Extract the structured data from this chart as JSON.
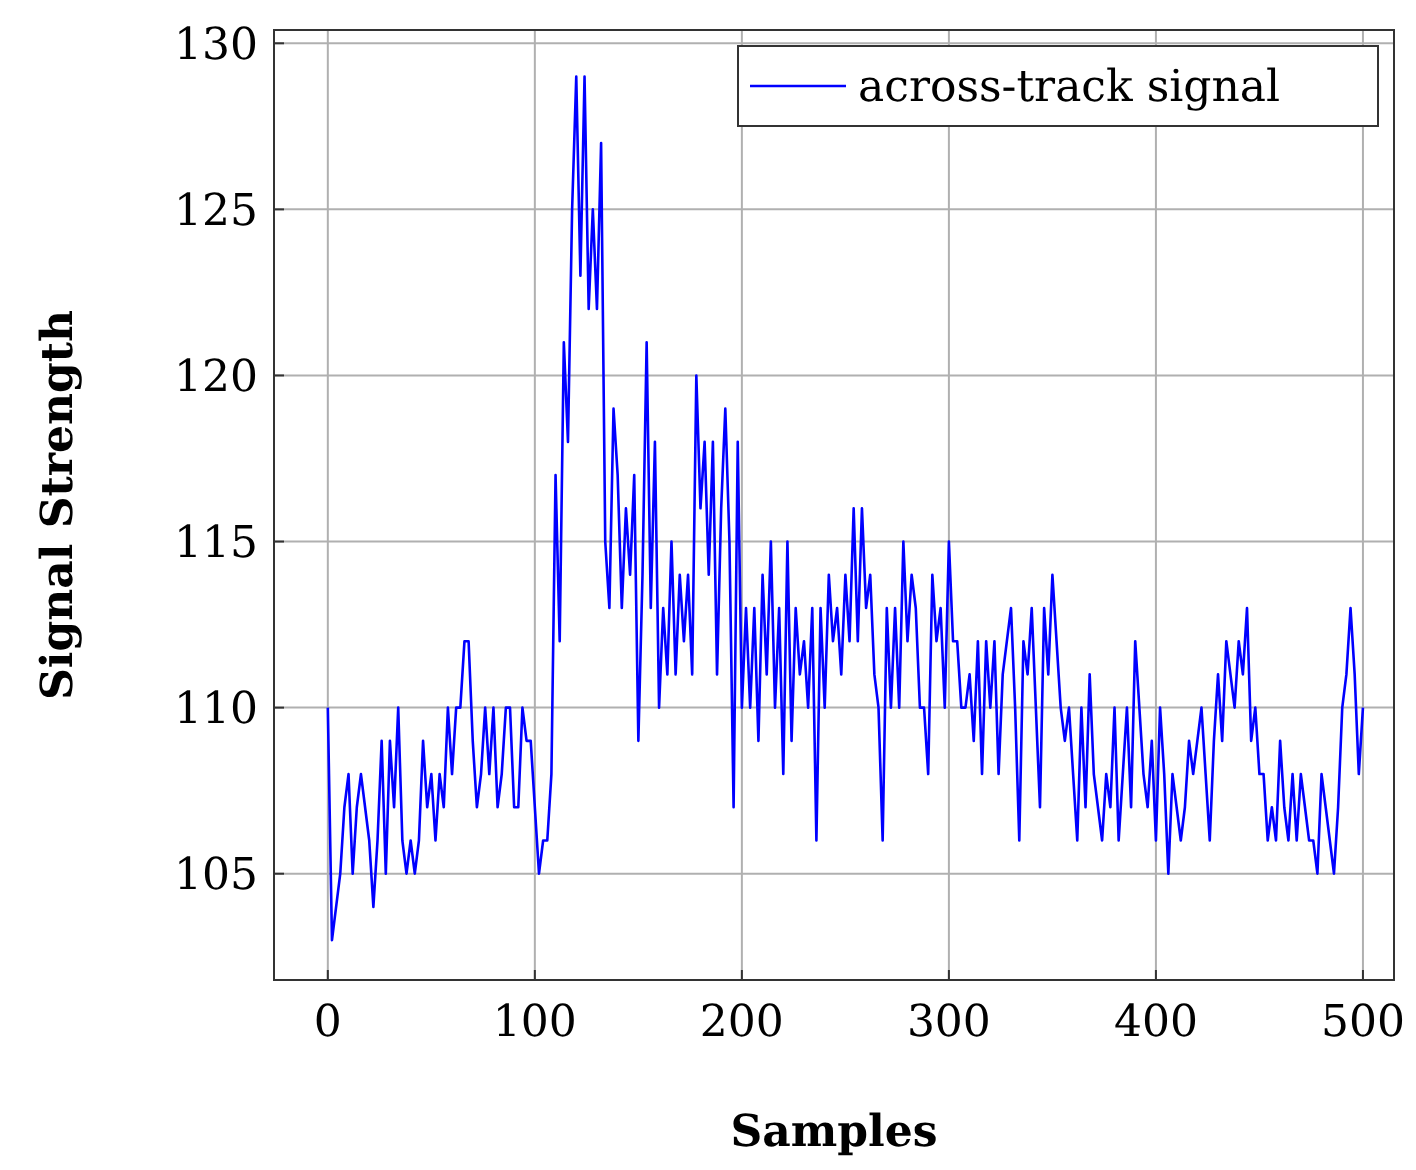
{
  "chart_data": {
    "type": "line",
    "xlabel": "Samples",
    "ylabel": "Signal Strength",
    "xlim": [
      -26,
      515
    ],
    "ylim": [
      101.8,
      130.4
    ],
    "xticks": [
      0,
      100,
      200,
      300,
      400,
      500
    ],
    "yticks": [
      105,
      110,
      115,
      120,
      125,
      130
    ],
    "grid": true,
    "legend": "top right",
    "line_style": "solid",
    "x": [
      0,
      2,
      4,
      6,
      8,
      10,
      12,
      14,
      16,
      18,
      20,
      22,
      24,
      26,
      28,
      30,
      32,
      34,
      36,
      38,
      40,
      42,
      44,
      46,
      48,
      50,
      52,
      54,
      56,
      58,
      60,
      62,
      64,
      66,
      68,
      70,
      72,
      74,
      76,
      78,
      80,
      82,
      84,
      86,
      88,
      90,
      92,
      94,
      96,
      98,
      100,
      102,
      104,
      106,
      108,
      110,
      112,
      114,
      116,
      118,
      120,
      122,
      124,
      126,
      128,
      130,
      132,
      134,
      136,
      138,
      140,
      142,
      144,
      146,
      148,
      150,
      152,
      154,
      156,
      158,
      160,
      162,
      164,
      166,
      168,
      170,
      172,
      174,
      176,
      178,
      180,
      182,
      184,
      186,
      188,
      190,
      192,
      194,
      196,
      198,
      200,
      202,
      204,
      206,
      208,
      210,
      212,
      214,
      216,
      218,
      220,
      222,
      224,
      226,
      228,
      230,
      232,
      234,
      236,
      238,
      240,
      242,
      244,
      246,
      248,
      250,
      252,
      254,
      256,
      258,
      260,
      262,
      264,
      266,
      268,
      270,
      272,
      274,
      276,
      278,
      280,
      282,
      284,
      286,
      288,
      290,
      292,
      294,
      296,
      298,
      300,
      302,
      304,
      306,
      308,
      310,
      312,
      314,
      316,
      318,
      320,
      322,
      324,
      326,
      328,
      330,
      332,
      334,
      336,
      338,
      340,
      342,
      344,
      346,
      348,
      350,
      352,
      354,
      356,
      358,
      360,
      362,
      364,
      366,
      368,
      370,
      372,
      374,
      376,
      378,
      380,
      382,
      384,
      386,
      388,
      390,
      392,
      394,
      396,
      398,
      400,
      402,
      404,
      406,
      408,
      410,
      412,
      414,
      416,
      418,
      420,
      422,
      424,
      426,
      428,
      430,
      432,
      434,
      436,
      438,
      440,
      442,
      444,
      446,
      448,
      450,
      452,
      454,
      456,
      458,
      460,
      462,
      464,
      466,
      468,
      470,
      472,
      474,
      476,
      478,
      480,
      482,
      484,
      486,
      488,
      490,
      492,
      494,
      496,
      498,
      500
    ],
    "series": [
      {
        "name": "across-track signal",
        "color": "#0000ff",
        "values": [
          110,
          103,
          104,
          105,
          107,
          108,
          105,
          107,
          108,
          107,
          106,
          104,
          106,
          109,
          105,
          109,
          107,
          110,
          106,
          105,
          106,
          105,
          106,
          109,
          107,
          108,
          106,
          108,
          107,
          110,
          108,
          110,
          110,
          112,
          112,
          109,
          107,
          108,
          110,
          108,
          110,
          107,
          108,
          110,
          110,
          107,
          107,
          110,
          109,
          109,
          107,
          105,
          106,
          106,
          108,
          117,
          112,
          121,
          118,
          125,
          129,
          123,
          129,
          122,
          125,
          122,
          127,
          115,
          113,
          119,
          117,
          113,
          116,
          114,
          117,
          109,
          114,
          121,
          113,
          118,
          110,
          113,
          111,
          115,
          111,
          114,
          112,
          114,
          111,
          120,
          116,
          118,
          114,
          118,
          111,
          116,
          119,
          115,
          107,
          118,
          110,
          113,
          110,
          113,
          109,
          114,
          111,
          115,
          110,
          113,
          108,
          115,
          109,
          113,
          111,
          112,
          110,
          113,
          106,
          113,
          110,
          114,
          112,
          113,
          111,
          114,
          112,
          116,
          112,
          116,
          113,
          114,
          111,
          110,
          106,
          113,
          110,
          113,
          110,
          115,
          112,
          114,
          113,
          110,
          110,
          108,
          114,
          112,
          113,
          110,
          115,
          112,
          112,
          110,
          110,
          111,
          109,
          112,
          108,
          112,
          110,
          112,
          108,
          111,
          112,
          113,
          110,
          106,
          112,
          111,
          113,
          110,
          107,
          113,
          111,
          114,
          112,
          110,
          109,
          110,
          108,
          106,
          110,
          107,
          111,
          108,
          107,
          106,
          108,
          107,
          110,
          106,
          108,
          110,
          107,
          112,
          110,
          108,
          107,
          109,
          106,
          110,
          108,
          105,
          108,
          107,
          106,
          107,
          109,
          108,
          109,
          110,
          108,
          106,
          109,
          111,
          109,
          112,
          111,
          110,
          112,
          111,
          113,
          109,
          110,
          108,
          108,
          106,
          107,
          106,
          109,
          107,
          106,
          108,
          106,
          108,
          107,
          106,
          106,
          105,
          108,
          107,
          106,
          105,
          107,
          110,
          111,
          113,
          111,
          108,
          110
        ]
      }
    ]
  }
}
